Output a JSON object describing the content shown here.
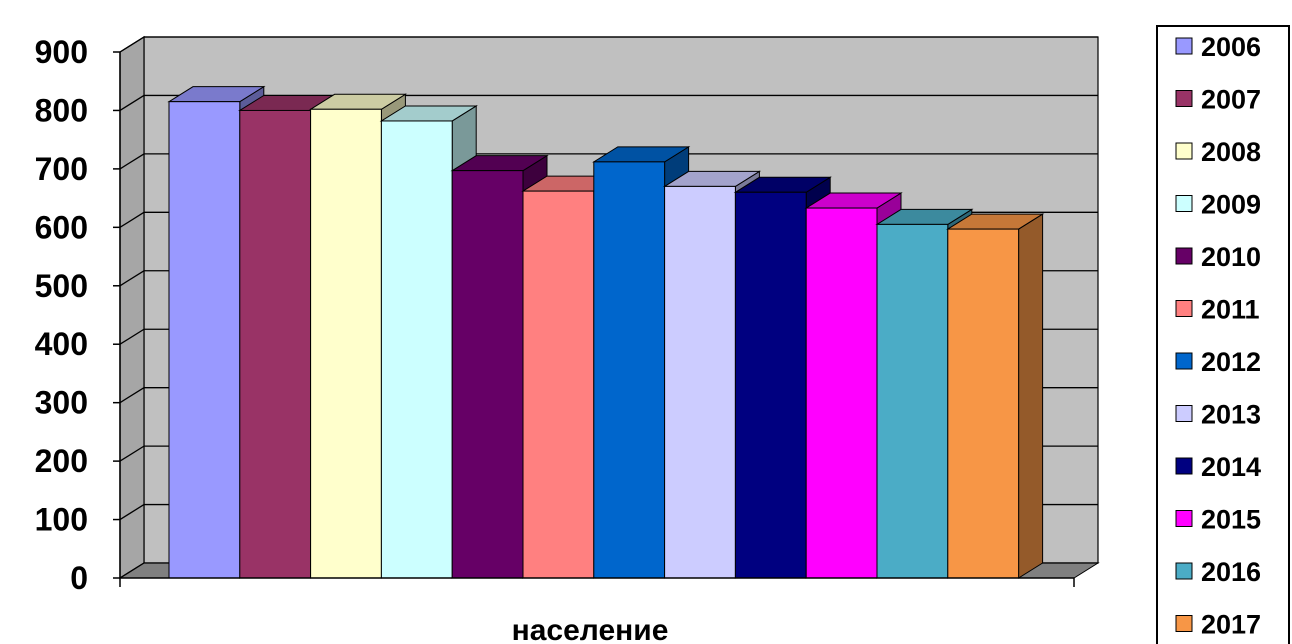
{
  "chart_data": {
    "type": "bar",
    "title": "",
    "xlabel": "население",
    "ylabel": "",
    "ylim": [
      0,
      900
    ],
    "yticks": [
      0,
      100,
      200,
      300,
      400,
      500,
      600,
      700,
      800,
      900
    ],
    "grid": true,
    "legend_position": "right",
    "three_d": true,
    "series": [
      {
        "name": "2006",
        "value": 815,
        "color": "#9999ff"
      },
      {
        "name": "2007",
        "value": 800,
        "color": "#993366"
      },
      {
        "name": "2008",
        "value": 802,
        "color": "#ffffcc"
      },
      {
        "name": "2009",
        "value": 782,
        "color": "#ccffff"
      },
      {
        "name": "2010",
        "value": 697,
        "color": "#660066"
      },
      {
        "name": "2011",
        "value": 662,
        "color": "#ff8080"
      },
      {
        "name": "2012",
        "value": 712,
        "color": "#0066cc"
      },
      {
        "name": "2013",
        "value": 670,
        "color": "#ccccff"
      },
      {
        "name": "2014",
        "value": 660,
        "color": "#000080"
      },
      {
        "name": "2015",
        "value": 633,
        "color": "#ff00ff"
      },
      {
        "name": "2016",
        "value": 605,
        "color": "#4bacc6"
      },
      {
        "name": "2017",
        "value": 597,
        "color": "#f79646"
      }
    ]
  }
}
